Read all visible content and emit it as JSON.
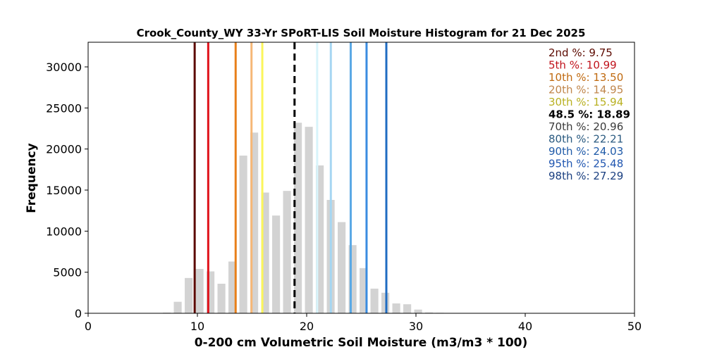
{
  "chart_data": {
    "type": "bar",
    "title": "Crook_County_WY 33-Yr SPoRT-LIS Soil Moisture Histogram for 21 Dec 2025",
    "xlabel": "0-200 cm Volumetric Soil Moisture (m3/m3 * 100)",
    "ylabel": "Frequency",
    "xlim": [
      0,
      50
    ],
    "ylim": [
      0,
      33000
    ],
    "xticks": [
      "0",
      "10",
      "20",
      "30",
      "40",
      "50"
    ],
    "xtick_values": [
      0,
      10,
      20,
      30,
      40,
      50
    ],
    "yticks": [
      "0",
      "5000",
      "10000",
      "15000",
      "20000",
      "25000",
      "30000"
    ],
    "ytick_values": [
      0,
      5000,
      10000,
      15000,
      20000,
      25000,
      30000
    ],
    "grid": false,
    "legend_position": "top-right",
    "bar_color": "#d3d3d3",
    "bins": [
      {
        "x": 7.2,
        "value": 80
      },
      {
        "x": 8.2,
        "value": 1400
      },
      {
        "x": 9.2,
        "value": 4300
      },
      {
        "x": 10.2,
        "value": 5400
      },
      {
        "x": 11.2,
        "value": 5100
      },
      {
        "x": 12.2,
        "value": 3600
      },
      {
        "x": 13.2,
        "value": 6300
      },
      {
        "x": 14.2,
        "value": 19200
      },
      {
        "x": 15.2,
        "value": 22000
      },
      {
        "x": 16.2,
        "value": 14700
      },
      {
        "x": 17.2,
        "value": 11900
      },
      {
        "x": 18.2,
        "value": 14900
      },
      {
        "x": 19.2,
        "value": 23200
      },
      {
        "x": 20.2,
        "value": 22700
      },
      {
        "x": 21.2,
        "value": 18000
      },
      {
        "x": 22.2,
        "value": 13800
      },
      {
        "x": 23.2,
        "value": 11100
      },
      {
        "x": 24.2,
        "value": 8300
      },
      {
        "x": 25.2,
        "value": 5500
      },
      {
        "x": 26.2,
        "value": 3000
      },
      {
        "x": 27.2,
        "value": 2500
      },
      {
        "x": 28.2,
        "value": 1200
      },
      {
        "x": 29.2,
        "value": 1100
      },
      {
        "x": 30.2,
        "value": 450
      },
      {
        "x": 31.2,
        "value": 100
      },
      {
        "x": 32.2,
        "value": 60
      },
      {
        "x": 33.2,
        "value": 40
      }
    ],
    "percentile_lines": [
      {
        "label": "2nd %",
        "value": "9.75",
        "x": 9.75,
        "color": "#5c0a00",
        "dashed": false
      },
      {
        "label": "5th %",
        "value": "10.99",
        "x": 10.99,
        "color": "#e0121b",
        "dashed": false
      },
      {
        "label": "10th %",
        "value": "13.50",
        "x": 13.5,
        "color": "#e8801a",
        "dashed": false
      },
      {
        "label": "20th %",
        "value": "14.95",
        "x": 14.95,
        "color": "#f6b776",
        "dashed": false
      },
      {
        "label": "30th %",
        "value": "15.94",
        "x": 15.94,
        "color": "#fbf55a",
        "dashed": false
      },
      {
        "label": "48.5 %",
        "value": "18.89",
        "x": 18.89,
        "color": "#000000",
        "dashed": true
      },
      {
        "label": "70th %",
        "value": "20.96",
        "x": 20.96,
        "color": "#d8f4fb",
        "dashed": false
      },
      {
        "label": "80th %",
        "value": "22.21",
        "x": 22.21,
        "color": "#a6d6f2",
        "dashed": false
      },
      {
        "label": "90th %",
        "value": "24.03",
        "x": 24.03,
        "color": "#5aa8e5",
        "dashed": false
      },
      {
        "label": "95th %",
        "value": "25.48",
        "x": 25.48,
        "color": "#3a8ce0",
        "dashed": false
      },
      {
        "label": "98th %",
        "value": "27.29",
        "x": 27.29,
        "color": "#1f6cc2",
        "dashed": false
      }
    ],
    "legend_colors": [
      "#5c0a00",
      "#c0121b",
      "#c06a10",
      "#c0864c",
      "#b8b020",
      "#000000",
      "#3a3a3a",
      "#2a5a80",
      "#1f5aa8",
      "#1f55b0",
      "#1a3f80"
    ]
  }
}
